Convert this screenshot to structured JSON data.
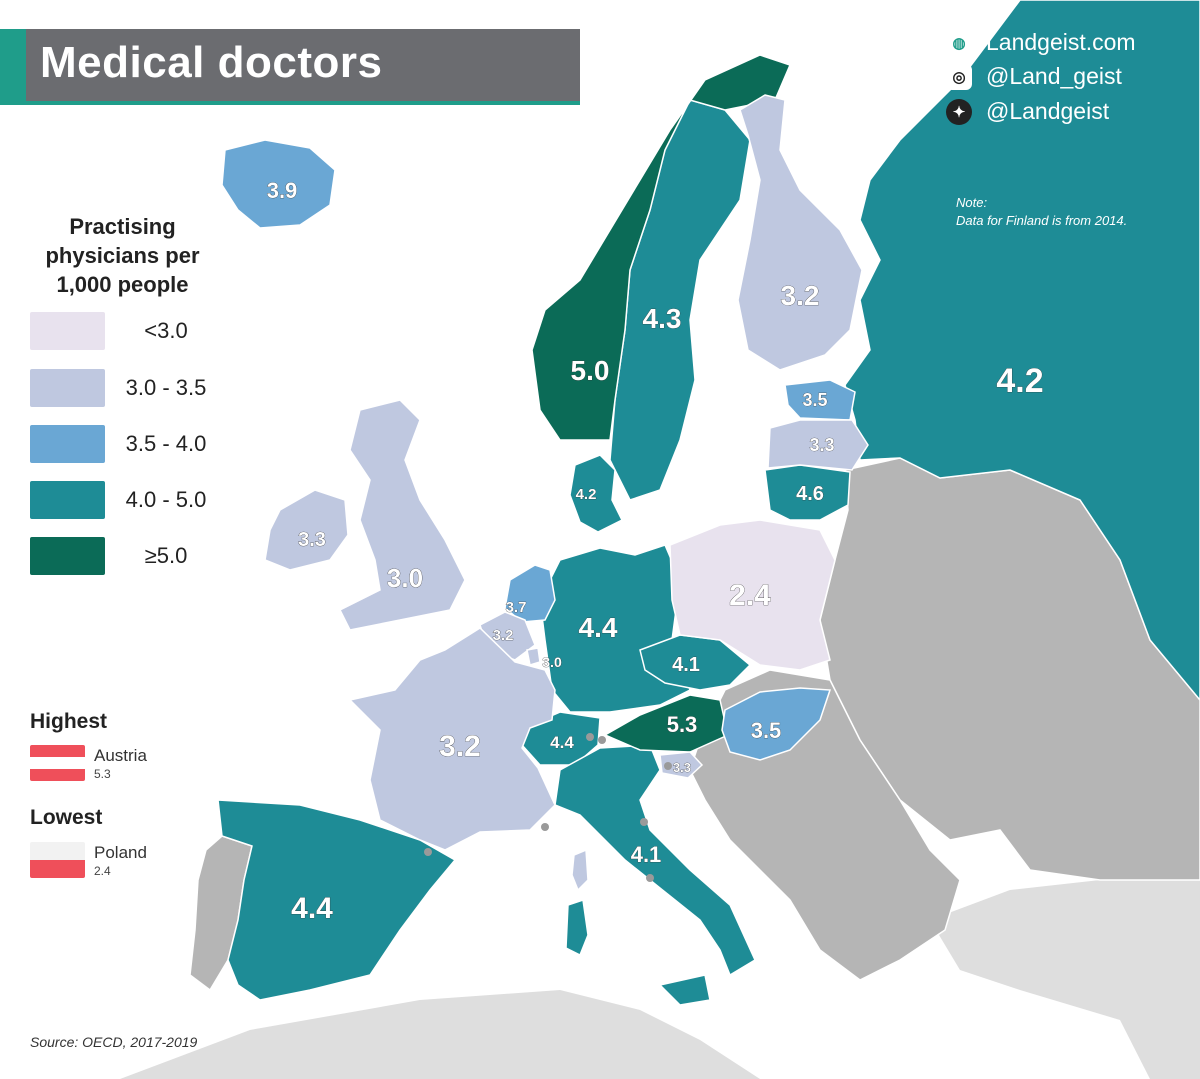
{
  "title": "Medical doctors",
  "social": {
    "website": "Landgeist.com",
    "instagram": "@Land_geist",
    "twitter": "@Landgeist"
  },
  "note": {
    "label": "Note:",
    "text": "Data for Finland is from 2014."
  },
  "legend": {
    "title_lines": [
      "Practising",
      "physicians per",
      "1,000 people"
    ],
    "items": [
      {
        "label": "<3.0",
        "color": "#e8e2ee"
      },
      {
        "label": "3.0 - 3.5",
        "color": "#bfc8e0"
      },
      {
        "label": "3.5 - 4.0",
        "color": "#6aa7d4"
      },
      {
        "label": "4.0 - 5.0",
        "color": "#1e8c96"
      },
      {
        "label": "≥5.0",
        "color": "#0b6b57"
      }
    ]
  },
  "highest": {
    "heading": "Highest",
    "country": "Austria",
    "value": "5.3"
  },
  "lowest": {
    "heading": "Lowest",
    "country": "Poland",
    "value": "2.4"
  },
  "source": "Source: OECD, 2017-2019",
  "colors": {
    "no_data": "#b5b5b5",
    "outside": "#dedede",
    "sea": "#ffffff",
    "title_bg": "#6b6c70",
    "accent": "#1f9d8a",
    "flag_red": "#ef4f5a"
  },
  "countries": [
    {
      "name": "Iceland",
      "value": "3.9",
      "bin": 2
    },
    {
      "name": "Norway",
      "value": "5.0",
      "bin": 4
    },
    {
      "name": "Sweden",
      "value": "4.3",
      "bin": 3
    },
    {
      "name": "Finland",
      "value": "3.2",
      "bin": 1
    },
    {
      "name": "Russia",
      "value": "4.2",
      "bin": 3
    },
    {
      "name": "Estonia",
      "value": "3.5",
      "bin": 2
    },
    {
      "name": "Latvia",
      "value": "3.3",
      "bin": 1
    },
    {
      "name": "Lithuania",
      "value": "4.6",
      "bin": 3
    },
    {
      "name": "Denmark",
      "value": "4.2",
      "bin": 3
    },
    {
      "name": "Ireland",
      "value": "3.3",
      "bin": 1
    },
    {
      "name": "United Kingdom",
      "value": "3.0",
      "bin": 1
    },
    {
      "name": "Netherlands",
      "value": "3.7",
      "bin": 2
    },
    {
      "name": "Belgium",
      "value": "3.2",
      "bin": 1
    },
    {
      "name": "Luxembourg",
      "value": "3.0",
      "bin": 1
    },
    {
      "name": "Germany",
      "value": "4.4",
      "bin": 3
    },
    {
      "name": "Poland",
      "value": "2.4",
      "bin": 0
    },
    {
      "name": "Czechia",
      "value": "4.1",
      "bin": 3
    },
    {
      "name": "Austria",
      "value": "5.3",
      "bin": 4
    },
    {
      "name": "Hungary",
      "value": "3.5",
      "bin": 2
    },
    {
      "name": "Switzerland",
      "value": "4.4",
      "bin": 3
    },
    {
      "name": "Slovenia",
      "value": "3.3",
      "bin": 1
    },
    {
      "name": "France",
      "value": "3.2",
      "bin": 1
    },
    {
      "name": "Italy",
      "value": "4.1",
      "bin": 3
    },
    {
      "name": "Spain",
      "value": "4.4",
      "bin": 3
    }
  ]
}
